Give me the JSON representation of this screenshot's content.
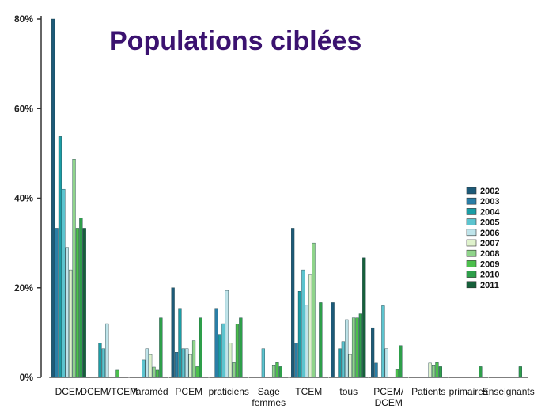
{
  "chart_data": {
    "type": "bar",
    "title": "Populations ciblées",
    "xlabel": "",
    "ylabel": "",
    "ylim": [
      0,
      80
    ],
    "yticks": [
      "0%",
      "20%",
      "40%",
      "60%",
      "80%"
    ],
    "ytick_values": [
      0,
      20,
      40,
      60,
      80
    ],
    "legend_position": "right",
    "grid": false,
    "categories": [
      [
        "DCEM"
      ],
      [
        "DCEM/TCEM"
      ],
      [
        "Paraméd"
      ],
      [
        "PCEM"
      ],
      [
        "praticiens"
      ],
      [
        "Sage",
        "femmes"
      ],
      [
        "TCEM"
      ],
      [
        "tous"
      ],
      [
        "PCEM/",
        "DCEM"
      ],
      [
        "Patients"
      ],
      [
        "primaires"
      ],
      [
        "Enseignants"
      ]
    ],
    "series": [
      {
        "name": "2002",
        "color": "#1d5a78",
        "values": [
          80,
          0,
          0,
          20,
          0,
          0,
          33.3,
          16.7,
          11.1,
          0,
          0,
          0
        ]
      },
      {
        "name": "2003",
        "color": "#2a7ea6",
        "values": [
          33.3,
          0,
          0,
          5.6,
          15.4,
          0,
          7.7,
          0,
          3.2,
          0,
          0,
          0
        ]
      },
      {
        "name": "2004",
        "color": "#1b9da5",
        "values": [
          53.8,
          7.7,
          0,
          15.4,
          9.6,
          0,
          19.2,
          6.4,
          0,
          0,
          0,
          0
        ]
      },
      {
        "name": "2005",
        "color": "#5cc4cf",
        "values": [
          42,
          6.4,
          3.9,
          6.4,
          12,
          6.4,
          24,
          8,
          16,
          0,
          0,
          0
        ]
      },
      {
        "name": "2006",
        "color": "#bfe4ea",
        "values": [
          29,
          12,
          6.4,
          6.4,
          19.4,
          0,
          16.1,
          12.9,
          6.4,
          0,
          0,
          0
        ]
      },
      {
        "name": "2007",
        "color": "#dff2cc",
        "values": [
          24,
          0,
          5.1,
          5.1,
          7.7,
          0,
          23,
          5.1,
          0,
          3.2,
          0,
          0
        ]
      },
      {
        "name": "2008",
        "color": "#8fd48a",
        "values": [
          48.7,
          0,
          2.3,
          8.2,
          3.3,
          2.6,
          30,
          13.3,
          0,
          2.6,
          0,
          0
        ]
      },
      {
        "name": "2009",
        "color": "#4cbf4c",
        "values": [
          33.3,
          1.6,
          1.6,
          2.4,
          11.9,
          3.3,
          0,
          13.3,
          1.7,
          3.3,
          0,
          0
        ]
      },
      {
        "name": "2010",
        "color": "#2e9f4a",
        "values": [
          35.6,
          0,
          13.3,
          13.3,
          13.3,
          2.4,
          16.7,
          14.2,
          7.1,
          2.4,
          2.4,
          2.4
        ]
      },
      {
        "name": "2011",
        "color": "#16603a",
        "values": [
          33.3,
          0,
          0,
          0,
          0,
          0,
          0,
          26.7,
          0,
          0,
          0,
          0
        ]
      }
    ]
  }
}
